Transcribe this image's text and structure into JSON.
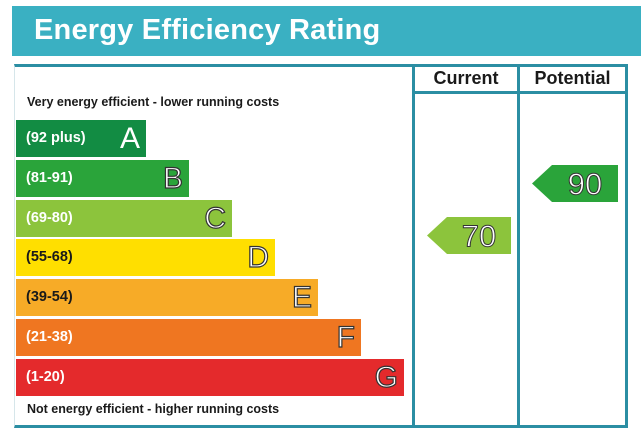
{
  "title": "Energy Efficiency Rating",
  "columns": {
    "current": "Current",
    "potential": "Potential"
  },
  "notes": {
    "top": "Very energy efficient - lower running costs",
    "bottom": "Not energy efficient - higher running costs"
  },
  "chart_data": {
    "type": "bar",
    "title": "Energy Efficiency Rating",
    "categories": [
      "A",
      "B",
      "C",
      "D",
      "E",
      "F",
      "G"
    ],
    "bands": [
      {
        "letter": "A",
        "range": "(92 plus)",
        "color": "#128c43"
      },
      {
        "letter": "B",
        "range": "(81-91)",
        "color": "#2aa43a"
      },
      {
        "letter": "C",
        "range": "(69-80)",
        "color": "#8cc43c"
      },
      {
        "letter": "D",
        "range": "(55-68)",
        "color": "#ffdf00"
      },
      {
        "letter": "E",
        "range": "(39-54)",
        "color": "#f7ab27"
      },
      {
        "letter": "F",
        "range": "(21-38)",
        "color": "#ef7621"
      },
      {
        "letter": "G",
        "range": "(1-20)",
        "color": "#e42a2c"
      }
    ],
    "current": {
      "value": 70,
      "band": "C",
      "color": "#8cc43c"
    },
    "potential": {
      "value": 90,
      "band": "B",
      "color": "#2aa43a"
    }
  }
}
